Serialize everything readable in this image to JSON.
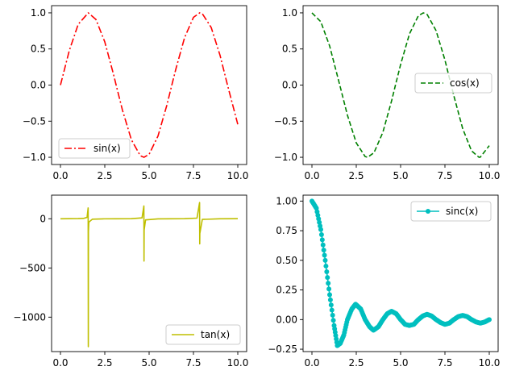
{
  "chart_data": [
    {
      "type": "line",
      "function": "sin",
      "xlim": [
        -0.5,
        10.5
      ],
      "ylim": [
        -1.1,
        1.1
      ],
      "xticks": [
        0,
        2.5,
        5,
        7.5,
        10
      ],
      "xtick_labels": [
        "0.0",
        "2.5",
        "5.0",
        "7.5",
        "10.0"
      ],
      "yticks": [
        -1,
        -0.5,
        0,
        0.5,
        1
      ],
      "ytick_labels": [
        "−1.0",
        "−0.5",
        "0.0",
        "0.5",
        "1.0"
      ],
      "legend_position": "lower-left",
      "series": [
        {
          "name": "sin(x)",
          "color": "#ff0000",
          "linestyle": "dashdot",
          "x": [
            0,
            0.5,
            1.0,
            1.57,
            2.0,
            2.5,
            3.0,
            3.14,
            3.5,
            4.0,
            4.5,
            4.71,
            5.0,
            5.5,
            6.0,
            6.28,
            6.5,
            7.0,
            7.5,
            7.85,
            8.0,
            8.5,
            9.0,
            9.42,
            9.5,
            10.0
          ],
          "y": [
            0,
            0.479,
            0.841,
            1.0,
            0.909,
            0.598,
            0.141,
            0.0,
            -0.351,
            -0.757,
            -0.978,
            -1.0,
            -0.959,
            -0.706,
            -0.279,
            0.0,
            0.215,
            0.657,
            0.938,
            1.0,
            0.989,
            0.798,
            0.412,
            0.0,
            -0.075,
            -0.544
          ]
        }
      ]
    },
    {
      "type": "line",
      "function": "cos",
      "xlim": [
        -0.5,
        10.5
      ],
      "ylim": [
        -1.1,
        1.1
      ],
      "xticks": [
        0,
        2.5,
        5,
        7.5,
        10
      ],
      "xtick_labels": [
        "0.0",
        "2.5",
        "5.0",
        "7.5",
        "10.0"
      ],
      "yticks": [
        -1,
        -0.5,
        0,
        0.5,
        1
      ],
      "ytick_labels": [
        "−1.0",
        "−0.5",
        "0.0",
        "0.5",
        "1.0"
      ],
      "legend_position": "center-right",
      "series": [
        {
          "name": "cos(x)",
          "color": "#008000",
          "linestyle": "dashed",
          "x": [
            0,
            0.5,
            1.0,
            1.57,
            2.0,
            2.5,
            3.0,
            3.14,
            3.5,
            4.0,
            4.5,
            4.71,
            5.0,
            5.5,
            6.0,
            6.28,
            6.5,
            7.0,
            7.5,
            7.85,
            8.0,
            8.5,
            9.0,
            9.42,
            9.5,
            10.0
          ],
          "y": [
            1.0,
            0.878,
            0.54,
            0.0,
            -0.416,
            -0.801,
            -0.99,
            -1.0,
            -0.936,
            -0.654,
            -0.211,
            0.0,
            0.284,
            0.709,
            0.96,
            1.0,
            0.977,
            0.754,
            0.347,
            0.0,
            -0.146,
            -0.602,
            -0.911,
            -1.0,
            -0.997,
            -0.839
          ]
        }
      ]
    },
    {
      "type": "line",
      "function": "tan",
      "xlim": [
        -0.5,
        10.5
      ],
      "ylim": [
        -1350,
        240
      ],
      "xticks": [
        0,
        2.5,
        5,
        7.5,
        10
      ],
      "xtick_labels": [
        "0.0",
        "2.5",
        "5.0",
        "7.5",
        "10.0"
      ],
      "yticks": [
        -1000,
        -500,
        0
      ],
      "ytick_labels": [
        "−1000",
        "−500",
        "0"
      ],
      "legend_position": "lower-right",
      "series": [
        {
          "name": "tan(x)",
          "color": "#bfbf00",
          "linestyle": "solid",
          "x": [
            0,
            0.5,
            1.0,
            1.3,
            1.5,
            1.562,
            1.571,
            1.578,
            1.6,
            1.8,
            2.5,
            3.14,
            4.0,
            4.6,
            4.705,
            4.712,
            4.72,
            4.8,
            5.5,
            6.28,
            7.0,
            7.7,
            7.846,
            7.854,
            7.86,
            8.0,
            9.0,
            10.0
          ],
          "y": [
            0,
            0.546,
            1.557,
            3.6,
            14.1,
            110,
            -1300,
            -130,
            -34.2,
            -4.29,
            -0.747,
            0,
            1.158,
            8.86,
            130,
            -430,
            -115,
            -11.4,
            -0.995,
            0,
            0.871,
            6.5,
            165,
            -255,
            -150,
            -6.8,
            -0.452,
            0.648
          ]
        }
      ]
    },
    {
      "type": "line",
      "function": "sinc",
      "xlim": [
        -0.5,
        10.5
      ],
      "ylim": [
        -0.27,
        1.05
      ],
      "xticks": [
        0,
        2.5,
        5,
        7.5,
        10
      ],
      "xtick_labels": [
        "0.0",
        "2.5",
        "5.0",
        "7.5",
        "10.0"
      ],
      "yticks": [
        -0.25,
        0,
        0.25,
        0.5,
        0.75,
        1.0
      ],
      "ytick_labels": [
        "−0.25",
        "0.00",
        "0.25",
        "0.50",
        "0.75",
        "1.00"
      ],
      "legend_position": "top-right",
      "series": [
        {
          "name": "sinc(x)",
          "color": "#00bfbf",
          "linestyle": "solid",
          "marker": "dot",
          "x": [
            0,
            0.25,
            0.5,
            0.75,
            1.0,
            1.25,
            1.43,
            1.6,
            1.8,
            2.0,
            2.25,
            2.46,
            2.75,
            3.0,
            3.25,
            3.47,
            3.75,
            4.0,
            4.25,
            4.49,
            4.75,
            5.0,
            5.25,
            5.49,
            5.75,
            6.0,
            6.25,
            6.49,
            6.75,
            7.0,
            7.25,
            7.5,
            7.75,
            8.0,
            8.25,
            8.5,
            8.75,
            9.0,
            9.25,
            9.5,
            9.75,
            10.0
          ],
          "y": [
            1.0,
            0.94,
            0.76,
            0.5,
            0.21,
            -0.05,
            -0.22,
            -0.2,
            -0.13,
            0.0,
            0.09,
            0.13,
            0.09,
            0.0,
            -0.06,
            -0.09,
            -0.06,
            0.0,
            0.05,
            0.07,
            0.05,
            0.0,
            -0.04,
            -0.05,
            -0.04,
            0.0,
            0.03,
            0.045,
            0.03,
            0.0,
            -0.025,
            -0.04,
            -0.03,
            0.0,
            0.025,
            0.035,
            0.025,
            0.0,
            -0.02,
            -0.03,
            -0.02,
            0.0
          ]
        }
      ]
    }
  ]
}
